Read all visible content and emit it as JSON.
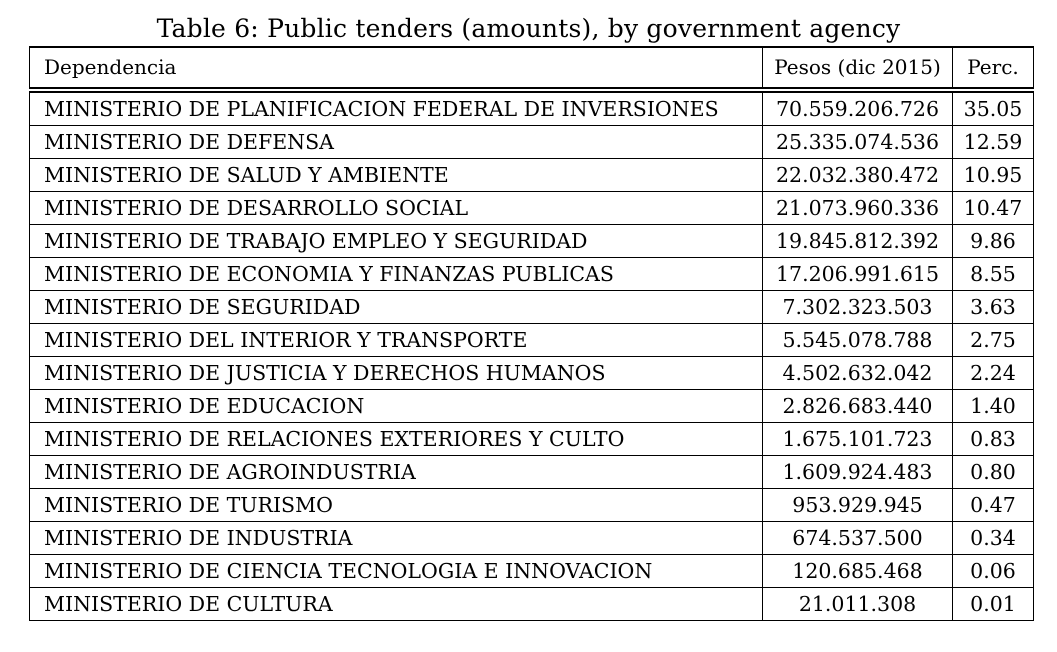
{
  "caption": "Table 6: Public tenders (amounts), by government agency",
  "table": {
    "headers": [
      "Dependencia",
      "Pesos (dic 2015)",
      "Perc."
    ],
    "rows": [
      {
        "dependencia": "MINISTERIO DE PLANIFICACION FEDERAL DE INVERSIONES",
        "pesos": "70.559.206.726",
        "perc": "35.05"
      },
      {
        "dependencia": "MINISTERIO DE DEFENSA",
        "pesos": "25.335.074.536",
        "perc": "12.59"
      },
      {
        "dependencia": "MINISTERIO DE SALUD Y AMBIENTE",
        "pesos": "22.032.380.472",
        "perc": "10.95"
      },
      {
        "dependencia": "MINISTERIO DE DESARROLLO SOCIAL",
        "pesos": "21.073.960.336",
        "perc": "10.47"
      },
      {
        "dependencia": "MINISTERIO DE TRABAJO EMPLEO Y SEGURIDAD",
        "pesos": "19.845.812.392",
        "perc": "9.86"
      },
      {
        "dependencia": "MINISTERIO DE ECONOMIA Y FINANZAS PUBLICAS",
        "pesos": "17.206.991.615",
        "perc": "8.55"
      },
      {
        "dependencia": "MINISTERIO DE SEGURIDAD",
        "pesos": "7.302.323.503",
        "perc": "3.63"
      },
      {
        "dependencia": "MINISTERIO DEL INTERIOR Y TRANSPORTE",
        "pesos": "5.545.078.788",
        "perc": "2.75"
      },
      {
        "dependencia": "MINISTERIO DE JUSTICIA Y DERECHOS HUMANOS",
        "pesos": "4.502.632.042",
        "perc": "2.24"
      },
      {
        "dependencia": "MINISTERIO DE EDUCACION",
        "pesos": "2.826.683.440",
        "perc": "1.40"
      },
      {
        "dependencia": "MINISTERIO DE RELACIONES EXTERIORES Y CULTO",
        "pesos": "1.675.101.723",
        "perc": "0.83"
      },
      {
        "dependencia": "MINISTERIO DE AGROINDUSTRIA",
        "pesos": "1.609.924.483",
        "perc": "0.80"
      },
      {
        "dependencia": "MINISTERIO DE TURISMO",
        "pesos": "953.929.945",
        "perc": "0.47"
      },
      {
        "dependencia": "MINISTERIO DE INDUSTRIA",
        "pesos": "674.537.500",
        "perc": "0.34"
      },
      {
        "dependencia": "MINISTERIO DE CIENCIA TECNOLOGIA E INNOVACION",
        "pesos": "120.685.468",
        "perc": "0.06"
      },
      {
        "dependencia": "MINISTERIO DE CULTURA",
        "pesos": "21.011.308",
        "perc": "0.01"
      }
    ]
  }
}
